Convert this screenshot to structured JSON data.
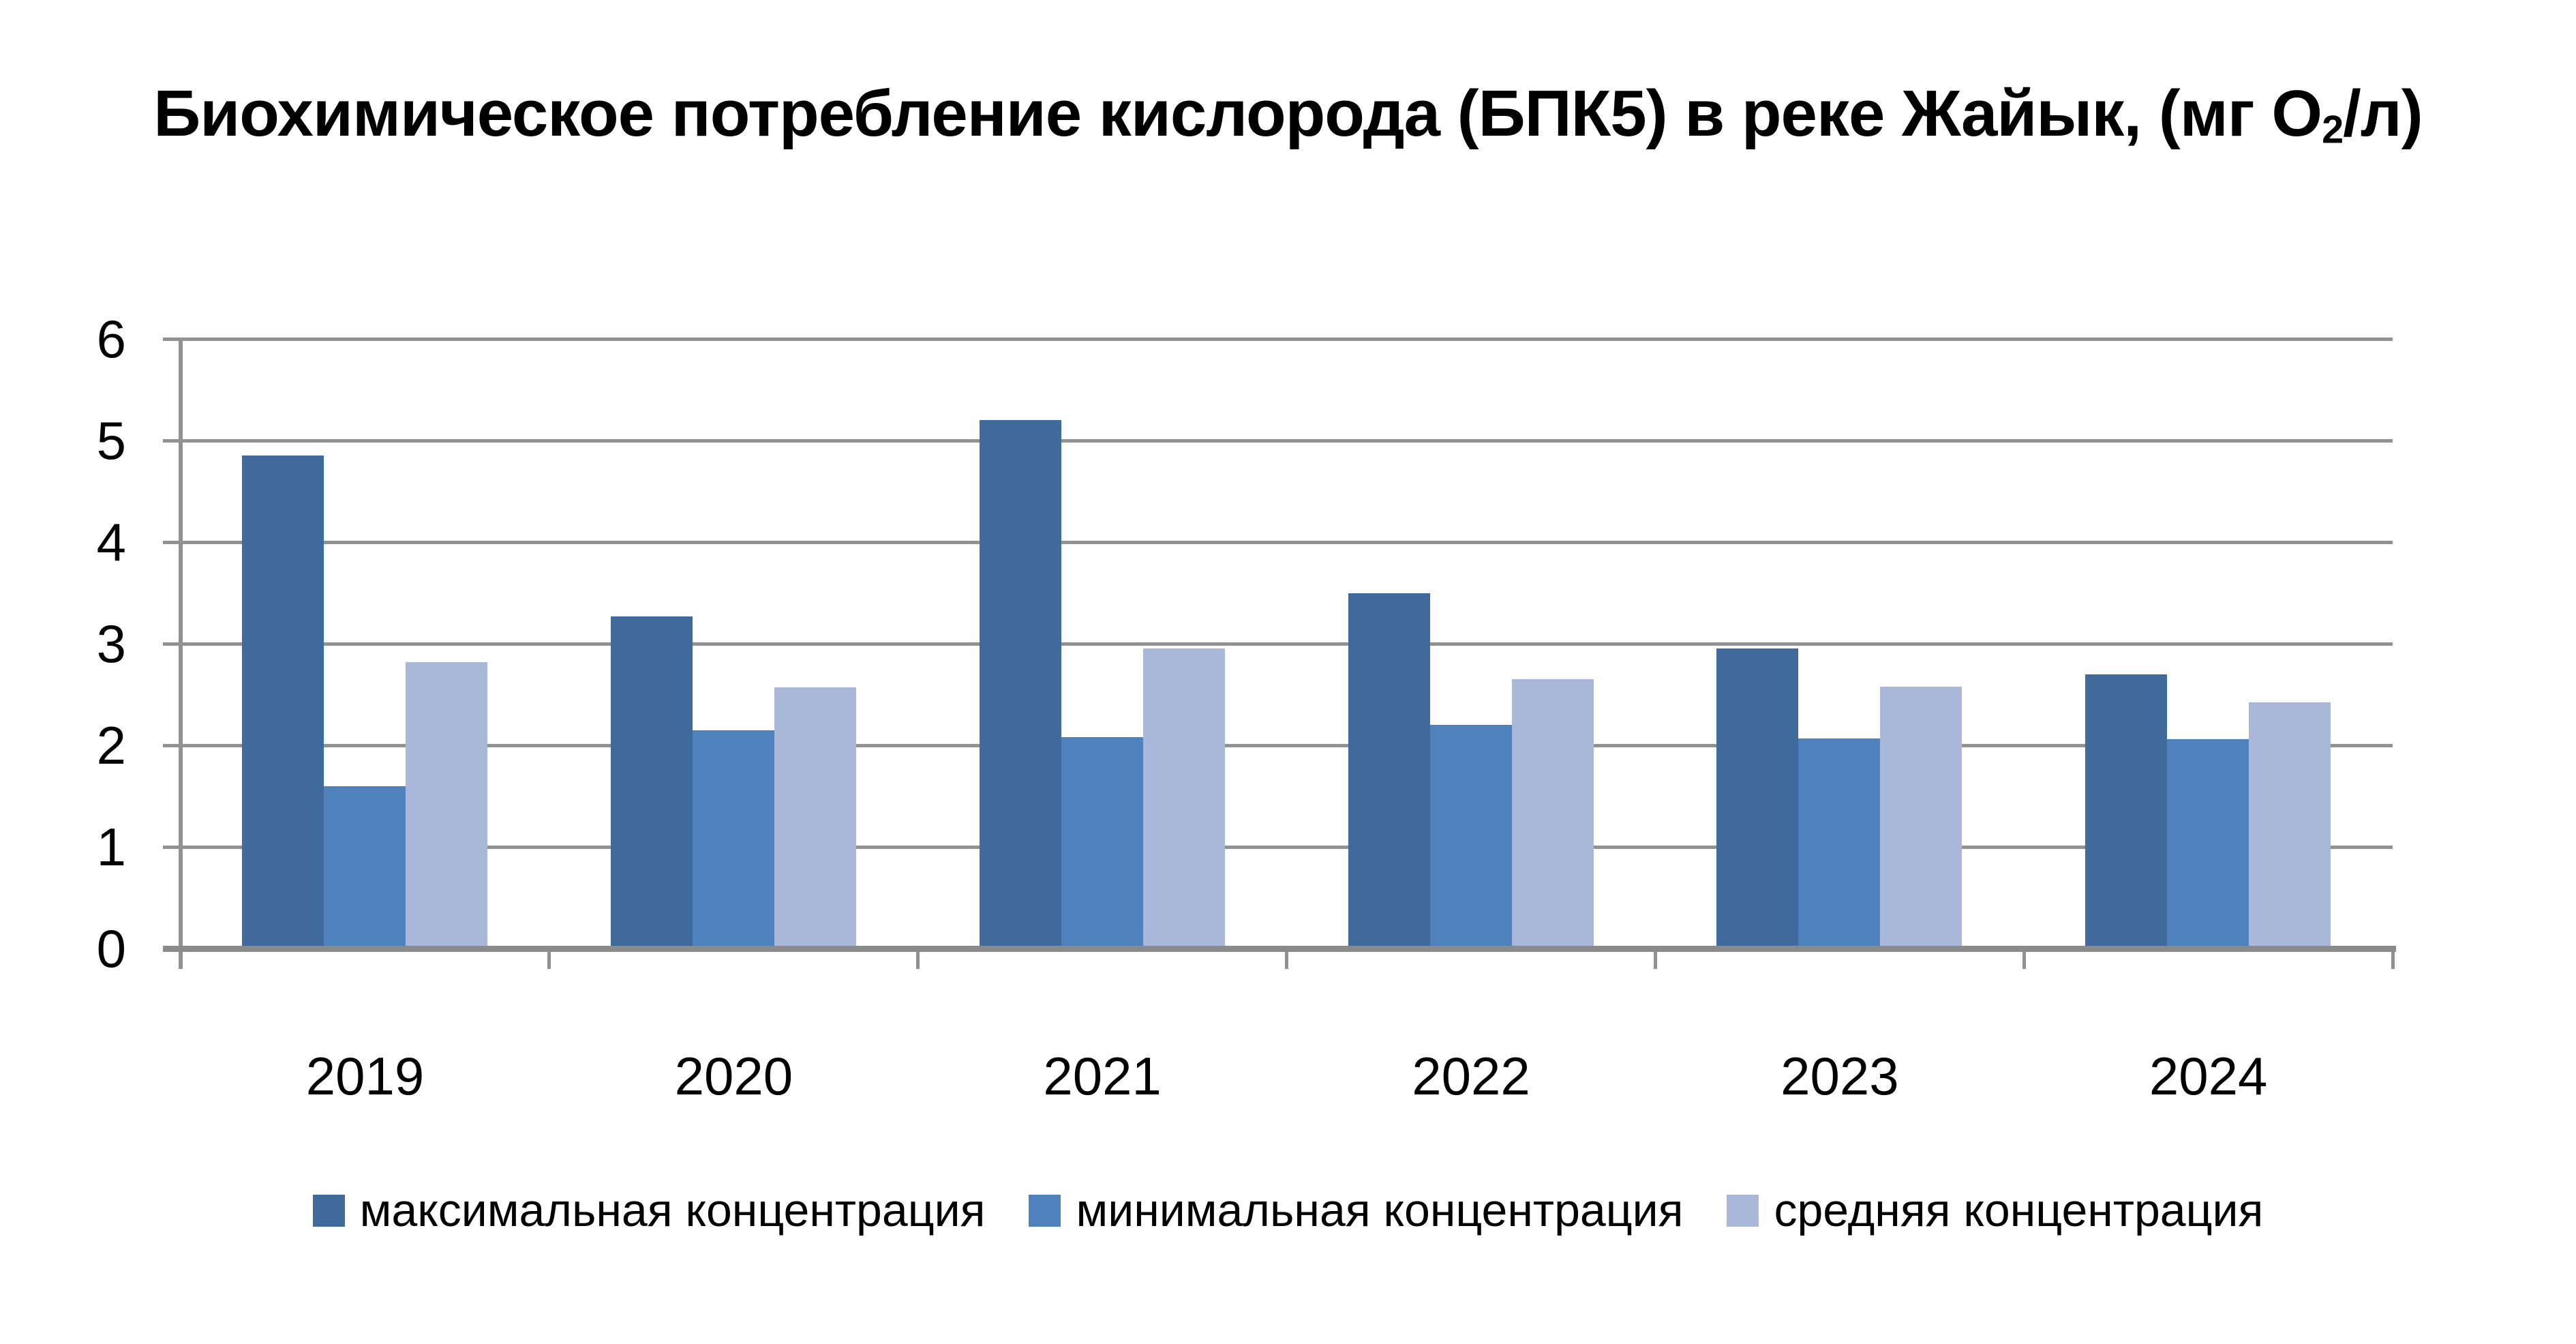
{
  "title": {
    "part1": "Биохимическое потребление кислорода (БПК5) в реке Жайык, (мг О",
    "subscript": "2",
    "part2": "/л)"
  },
  "chart_data": {
    "type": "bar",
    "title": "Биохимическое потребление кислорода (БПК5) в реке Жайык, (мг О2/л)",
    "categories": [
      "2019",
      "2020",
      "2021",
      "2022",
      "2023",
      "2024"
    ],
    "series": [
      {
        "key": "max",
        "name": "максимальная концентрация",
        "color": "#40699C",
        "values": [
          4.85,
          3.27,
          5.2,
          3.5,
          2.95,
          2.7
        ]
      },
      {
        "key": "min",
        "name": "минимальная концентрация",
        "color": "#4F81BD",
        "values": [
          1.6,
          2.15,
          2.08,
          2.2,
          2.07,
          2.06
        ]
      },
      {
        "key": "avg",
        "name": "средняя концентрация",
        "color": "#A9B8D8",
        "values": [
          2.82,
          2.57,
          2.95,
          2.65,
          2.58,
          2.42
        ]
      }
    ],
    "xlabel": "",
    "ylabel": "",
    "ylim": [
      0,
      6
    ],
    "yticks": [
      0,
      1,
      2,
      3,
      4,
      5,
      6
    ],
    "grid": true,
    "gridline_color": "#919191",
    "axis_color": "#8A8A8A",
    "legend_position": "bottom"
  }
}
